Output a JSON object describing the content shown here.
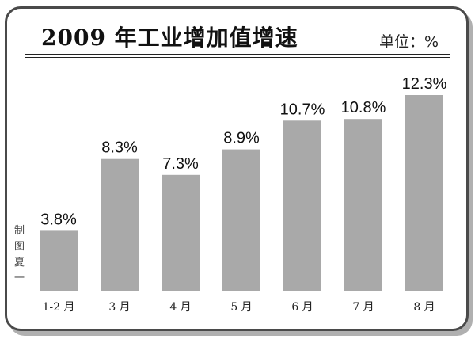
{
  "header": {
    "title": "2009 年工业增加值增速",
    "unit": "单位：%"
  },
  "credit": "制图 夏一",
  "colors": {
    "bar": "#a9a9a9",
    "frame": "#4a4a4a",
    "shadow": "#b0b0b0"
  },
  "chart_data": {
    "type": "bar",
    "title": "2009 年工业增加值增速",
    "xlabel": "",
    "ylabel": "",
    "unit": "%",
    "categories": [
      "1-2 月",
      "3 月",
      "4 月",
      "5 月",
      "6 月",
      "7 月",
      "8 月"
    ],
    "values": [
      3.8,
      8.3,
      7.3,
      8.9,
      10.7,
      10.8,
      12.3
    ],
    "value_labels": [
      "3.8%",
      "8.3%",
      "7.3%",
      "8.9%",
      "10.7%",
      "10.8%",
      "12.3%"
    ],
    "ylim": [
      0,
      12.3
    ],
    "grid": false,
    "legend": "none"
  }
}
